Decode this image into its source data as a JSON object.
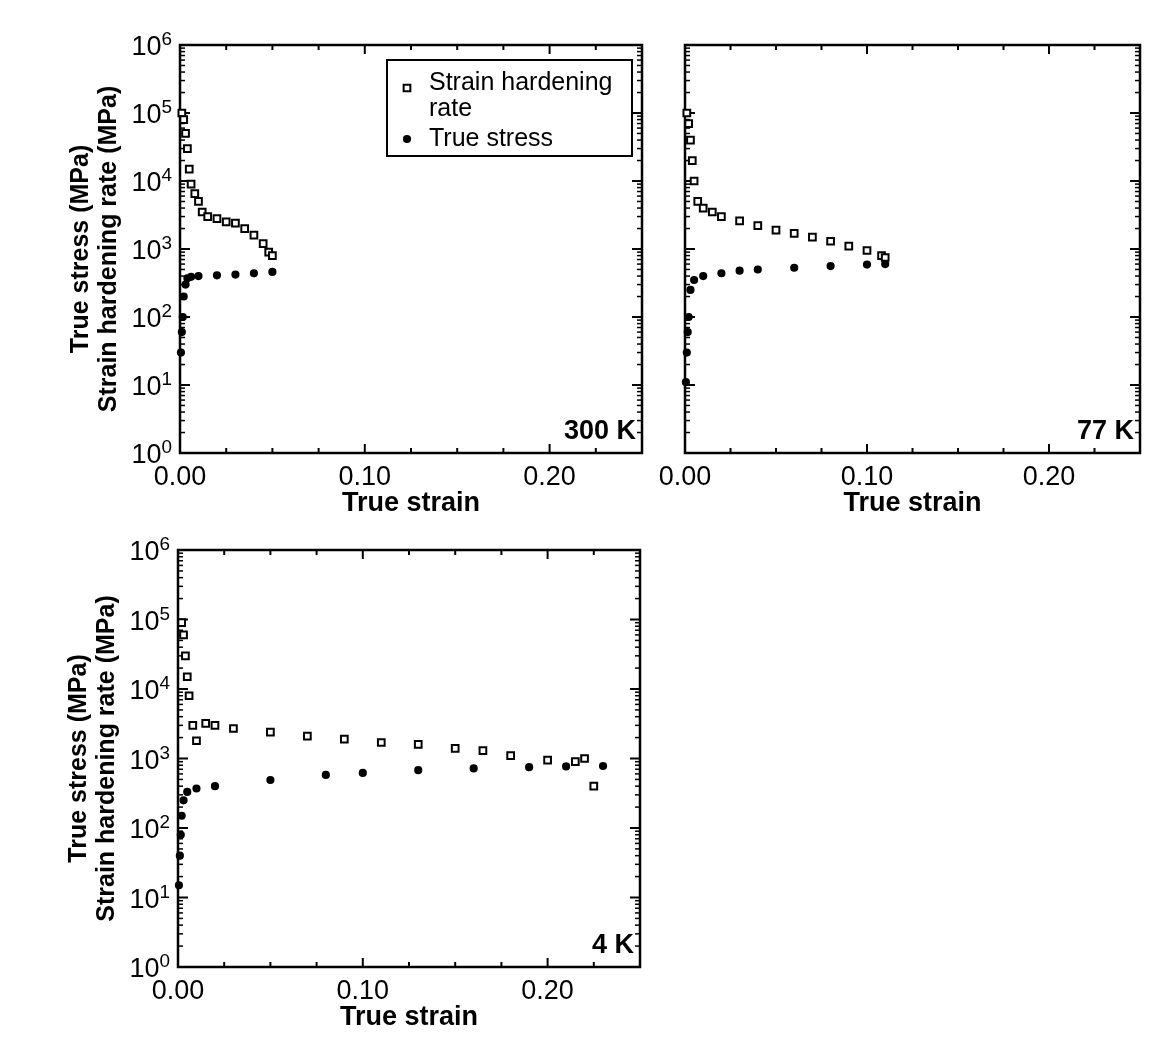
{
  "chart_data": [
    {
      "type": "scatter",
      "xlabel": "True strain",
      "ylabel": "True stress (MPa)\nStrain hardening rate (MPa)",
      "log": "y",
      "legend": "top right",
      "xlim": [
        0,
        0.25
      ],
      "xticks": [
        {
          "value": 0,
          "label": "0.00"
        },
        {
          "value": 0.025,
          "label": null
        },
        {
          "value": 0.05,
          "label": null
        },
        {
          "value": 0.075,
          "label": null
        },
        {
          "value": 0.1,
          "label": "0.10"
        },
        {
          "value": 0.125,
          "label": null
        },
        {
          "value": 0.15,
          "label": null
        },
        {
          "value": 0.175,
          "label": null
        },
        {
          "value": 0.2,
          "label": "0.20"
        },
        {
          "value": 0.225,
          "label": null
        }
      ],
      "ylim": [
        1,
        1000000
      ],
      "yticks": [
        {
          "value": 1,
          "label": "10$^{0}$"
        },
        {
          "value": 10,
          "label": "10$^{1}$"
        },
        {
          "value": 100,
          "label": "10$^{2}$"
        },
        {
          "value": 1000,
          "label": "10$^{3}$"
        },
        {
          "value": 10000,
          "label": "10$^{4}$"
        },
        {
          "value": 100000,
          "label": "10$^{5}$"
        },
        {
          "value": 1000000,
          "label": "10$^{6}$"
        }
      ],
      "annotations": [
        "300 K"
      ],
      "series": [
        {
          "name": "Strain hardening rate",
          "color": "#000000",
          "marker": "square",
          "x": [
            0.001,
            0.002,
            0.003,
            0.004,
            0.005,
            0.006,
            0.008,
            0.01,
            0.012,
            0.015,
            0.02,
            0.025,
            0.03,
            0.035,
            0.04,
            0.045,
            0.048,
            0.05
          ],
          "values": [
            100000,
            80000,
            50000,
            30000,
            15000,
            9000,
            6500,
            5000,
            3500,
            3000,
            2800,
            2500,
            2400,
            2000,
            1600,
            1200,
            900,
            800
          ]
        },
        {
          "name": "True stress",
          "color": "#000000",
          "marker": "circle",
          "x": [
            0.0005,
            0.001,
            0.0015,
            0.002,
            0.003,
            0.004,
            0.006,
            0.01,
            0.02,
            0.03,
            0.04,
            0.05
          ],
          "values": [
            30,
            60,
            100,
            200,
            300,
            370,
            390,
            400,
            410,
            420,
            440,
            460
          ]
        }
      ]
    },
    {
      "type": "scatter",
      "xlabel": "True strain",
      "log": "y",
      "tick_labels": "x",
      "xlim": [
        0,
        0.25
      ],
      "xticks": [
        {
          "value": 0,
          "label": "0.00"
        },
        {
          "value": 0.025,
          "label": null
        },
        {
          "value": 0.05,
          "label": null
        },
        {
          "value": 0.075,
          "label": null
        },
        {
          "value": 0.1,
          "label": "0.10"
        },
        {
          "value": 0.125,
          "label": null
        },
        {
          "value": 0.15,
          "label": null
        },
        {
          "value": 0.175,
          "label": null
        },
        {
          "value": 0.2,
          "label": "0.20"
        },
        {
          "value": 0.225,
          "label": null
        }
      ],
      "ylim": [
        1,
        1000000
      ],
      "yticks": [
        {
          "value": 1,
          "label": null
        },
        {
          "value": 10,
          "label": null
        },
        {
          "value": 100,
          "label": null
        },
        {
          "value": 1000,
          "label": null
        },
        {
          "value": 10000,
          "label": null
        },
        {
          "value": 100000,
          "label": null
        },
        {
          "value": 1000000,
          "label": null
        }
      ],
      "annotations": [
        "77 K"
      ],
      "series": [
        {
          "color": "#000000",
          "marker": "square",
          "x": [
            0.001,
            0.002,
            0.003,
            0.004,
            0.005,
            0.007,
            0.01,
            0.015,
            0.02,
            0.03,
            0.04,
            0.05,
            0.06,
            0.07,
            0.08,
            0.09,
            0.1,
            0.108,
            0.11
          ],
          "values": [
            100000,
            70000,
            40000,
            20000,
            10000,
            5000,
            4000,
            3500,
            3000,
            2600,
            2200,
            1900,
            1700,
            1500,
            1300,
            1100,
            950,
            800,
            750
          ]
        },
        {
          "color": "#000000",
          "marker": "circle",
          "x": [
            0.0005,
            0.001,
            0.0015,
            0.002,
            0.003,
            0.005,
            0.01,
            0.02,
            0.03,
            0.04,
            0.06,
            0.08,
            0.1,
            0.11
          ],
          "values": [
            11,
            30,
            60,
            100,
            250,
            350,
            400,
            440,
            480,
            500,
            530,
            560,
            590,
            600
          ]
        }
      ]
    },
    {
      "type": "scatter",
      "xlabel": "True strain",
      "ylabel": "True stress (MPa)\nStrain hardening rate (MPa)",
      "log": "y",
      "xlim": [
        0,
        0.25
      ],
      "xticks": [
        {
          "value": 0,
          "label": "0.00"
        },
        {
          "value": 0.025,
          "label": null
        },
        {
          "value": 0.05,
          "label": null
        },
        {
          "value": 0.075,
          "label": null
        },
        {
          "value": 0.1,
          "label": "0.10"
        },
        {
          "value": 0.125,
          "label": null
        },
        {
          "value": 0.15,
          "label": null
        },
        {
          "value": 0.175,
          "label": null
        },
        {
          "value": 0.2,
          "label": "0.20"
        },
        {
          "value": 0.225,
          "label": null
        }
      ],
      "ylim": [
        1,
        1000000
      ],
      "yticks": [
        {
          "value": 1,
          "label": "10$^{0}$"
        },
        {
          "value": 10,
          "label": "10$^{1}$"
        },
        {
          "value": 100,
          "label": "10$^{2}$"
        },
        {
          "value": 1000,
          "label": "10$^{3}$"
        },
        {
          "value": 10000,
          "label": "10$^{4}$"
        },
        {
          "value": 100000,
          "label": "10$^{5}$"
        },
        {
          "value": 1000000,
          "label": "10$^{6}$"
        }
      ],
      "annotations": [
        "4 K"
      ],
      "series": [
        {
          "color": "#000000",
          "marker": "square",
          "x": [
            0.002,
            0.003,
            0.004,
            0.005,
            0.006,
            0.008,
            0.01,
            0.015,
            0.02,
            0.03,
            0.05,
            0.07,
            0.09,
            0.11,
            0.13,
            0.15,
            0.165,
            0.18,
            0.2,
            0.215,
            0.22,
            0.225
          ],
          "values": [
            90000,
            60000,
            30000,
            15000,
            8000,
            3000,
            1800,
            3200,
            3000,
            2700,
            2400,
            2100,
            1900,
            1700,
            1600,
            1400,
            1300,
            1100,
            950,
            900,
            1000,
            400
          ]
        },
        {
          "color": "#000000",
          "marker": "circle",
          "x": [
            0.0005,
            0.001,
            0.0015,
            0.002,
            0.003,
            0.005,
            0.01,
            0.02,
            0.05,
            0.08,
            0.1,
            0.13,
            0.16,
            0.19,
            0.21,
            0.23
          ],
          "values": [
            15,
            40,
            80,
            150,
            250,
            330,
            370,
            400,
            490,
            580,
            620,
            680,
            720,
            750,
            770,
            780
          ]
        }
      ]
    }
  ]
}
